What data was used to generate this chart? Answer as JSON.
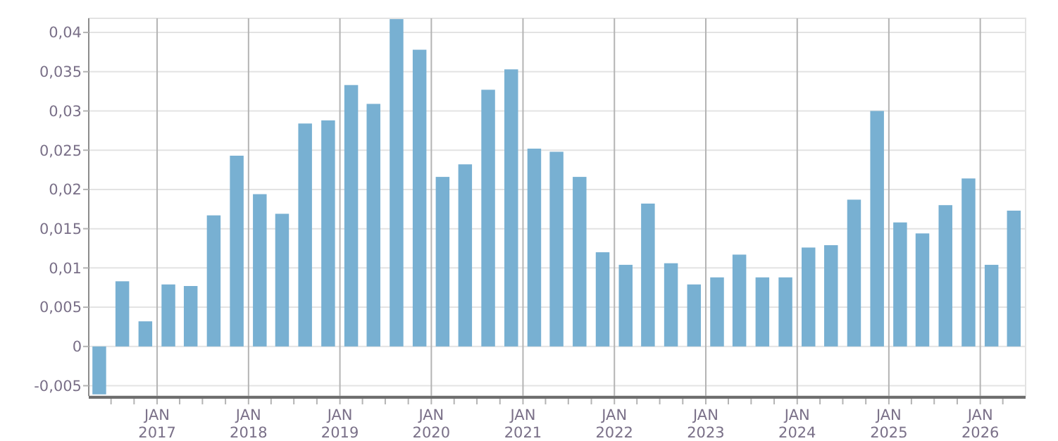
{
  "chart_data": {
    "type": "bar",
    "x": [
      "2016-05-15",
      "2016-08-15",
      "2016-11-15",
      "2017-02-15",
      "2017-05-15",
      "2017-08-15",
      "2017-11-15",
      "2018-02-15",
      "2018-05-15",
      "2018-08-15",
      "2018-11-15",
      "2019-02-15",
      "2019-05-15",
      "2019-08-15",
      "2019-11-15",
      "2020-02-15",
      "2020-05-15",
      "2020-08-15",
      "2020-11-15",
      "2021-02-15",
      "2021-05-15",
      "2021-08-15",
      "2021-11-15",
      "2022-02-15",
      "2022-05-15",
      "2022-08-15",
      "2022-11-15",
      "2023-02-15",
      "2023-05-15",
      "2023-08-15",
      "2023-11-15",
      "2024-02-15",
      "2024-05-15",
      "2024-08-15",
      "2024-11-15",
      "2025-02-15",
      "2025-05-15",
      "2025-08-15",
      "2025-11-15",
      "2026-02-15",
      "2026-05-15"
    ],
    "series": [
      {
        "color": "#78b0d2",
        "values": [
          -0.0061,
          0.0083,
          0.0032,
          0.0079,
          0.0077,
          0.0167,
          0.0243,
          0.0194,
          0.0169,
          0.0284,
          0.0288,
          0.0333,
          0.0309,
          0.0417,
          0.0378,
          0.0216,
          0.0232,
          0.0327,
          0.0353,
          0.0252,
          0.0248,
          0.0216,
          0.012,
          0.0104,
          0.0182,
          0.0106,
          0.0079,
          0.0088,
          0.0117,
          0.0088,
          0.0088,
          0.0126,
          0.0129,
          0.0187,
          0.03,
          0.0158,
          0.0144,
          0.018,
          0.0214,
          0.0104,
          0.0173
        ]
      }
    ],
    "xlim": [
      "2016-04-03",
      "2026-07-01"
    ],
    "xticks": [
      {
        "value": "2016-07-01",
        "label": null
      },
      {
        "value": "2016-10-01",
        "label": null
      },
      {
        "value": "2017-01-01",
        "label": "JAN\n2017"
      },
      {
        "value": "2017-04-01",
        "label": null
      },
      {
        "value": "2017-07-01",
        "label": null
      },
      {
        "value": "2017-10-01",
        "label": null
      },
      {
        "value": "2018-01-01",
        "label": "JAN\n2018"
      },
      {
        "value": "2018-04-01",
        "label": null
      },
      {
        "value": "2018-07-01",
        "label": null
      },
      {
        "value": "2018-10-01",
        "label": null
      },
      {
        "value": "2019-01-01",
        "label": "JAN\n2019"
      },
      {
        "value": "2019-04-01",
        "label": null
      },
      {
        "value": "2019-07-01",
        "label": null
      },
      {
        "value": "2019-10-01",
        "label": null
      },
      {
        "value": "2020-01-01",
        "label": "JAN\n2020"
      },
      {
        "value": "2020-04-01",
        "label": null
      },
      {
        "value": "2020-07-01",
        "label": null
      },
      {
        "value": "2020-10-01",
        "label": null
      },
      {
        "value": "2021-01-01",
        "label": "JAN\n2021"
      },
      {
        "value": "2021-04-01",
        "label": null
      },
      {
        "value": "2021-07-01",
        "label": null
      },
      {
        "value": "2021-10-01",
        "label": null
      },
      {
        "value": "2022-01-01",
        "label": "JAN\n2022"
      },
      {
        "value": "2022-04-01",
        "label": null
      },
      {
        "value": "2022-07-01",
        "label": null
      },
      {
        "value": "2022-10-01",
        "label": null
      },
      {
        "value": "2023-01-01",
        "label": "JAN\n2023"
      },
      {
        "value": "2023-04-01",
        "label": null
      },
      {
        "value": "2023-07-01",
        "label": null
      },
      {
        "value": "2023-10-01",
        "label": null
      },
      {
        "value": "2024-01-01",
        "label": "JAN\n2024"
      },
      {
        "value": "2024-04-01",
        "label": null
      },
      {
        "value": "2024-07-01",
        "label": null
      },
      {
        "value": "2024-10-01",
        "label": null
      },
      {
        "value": "2025-01-01",
        "label": "JAN\n2025"
      },
      {
        "value": "2025-04-01",
        "label": null
      },
      {
        "value": "2025-07-01",
        "label": null
      },
      {
        "value": "2025-10-01",
        "label": null
      },
      {
        "value": "2026-01-01",
        "label": "JAN\n2026"
      },
      {
        "value": "2026-04-01",
        "label": null
      }
    ],
    "ylim": [
      -0.0063,
      0.0418
    ],
    "yticks": [
      {
        "value": -0.005,
        "label": "-0,005"
      },
      {
        "value": 0,
        "label": "0"
      },
      {
        "value": 0.005,
        "label": "0,005"
      },
      {
        "value": 0.01,
        "label": "0,01"
      },
      {
        "value": 0.015,
        "label": "0,015"
      },
      {
        "value": 0.02,
        "label": "0,02"
      },
      {
        "value": 0.025,
        "label": "0,025"
      },
      {
        "value": 0.03,
        "label": "0,03"
      },
      {
        "value": 0.035,
        "label": "0,035"
      },
      {
        "value": 0.04,
        "label": "0,04"
      }
    ],
    "grid": true
  }
}
